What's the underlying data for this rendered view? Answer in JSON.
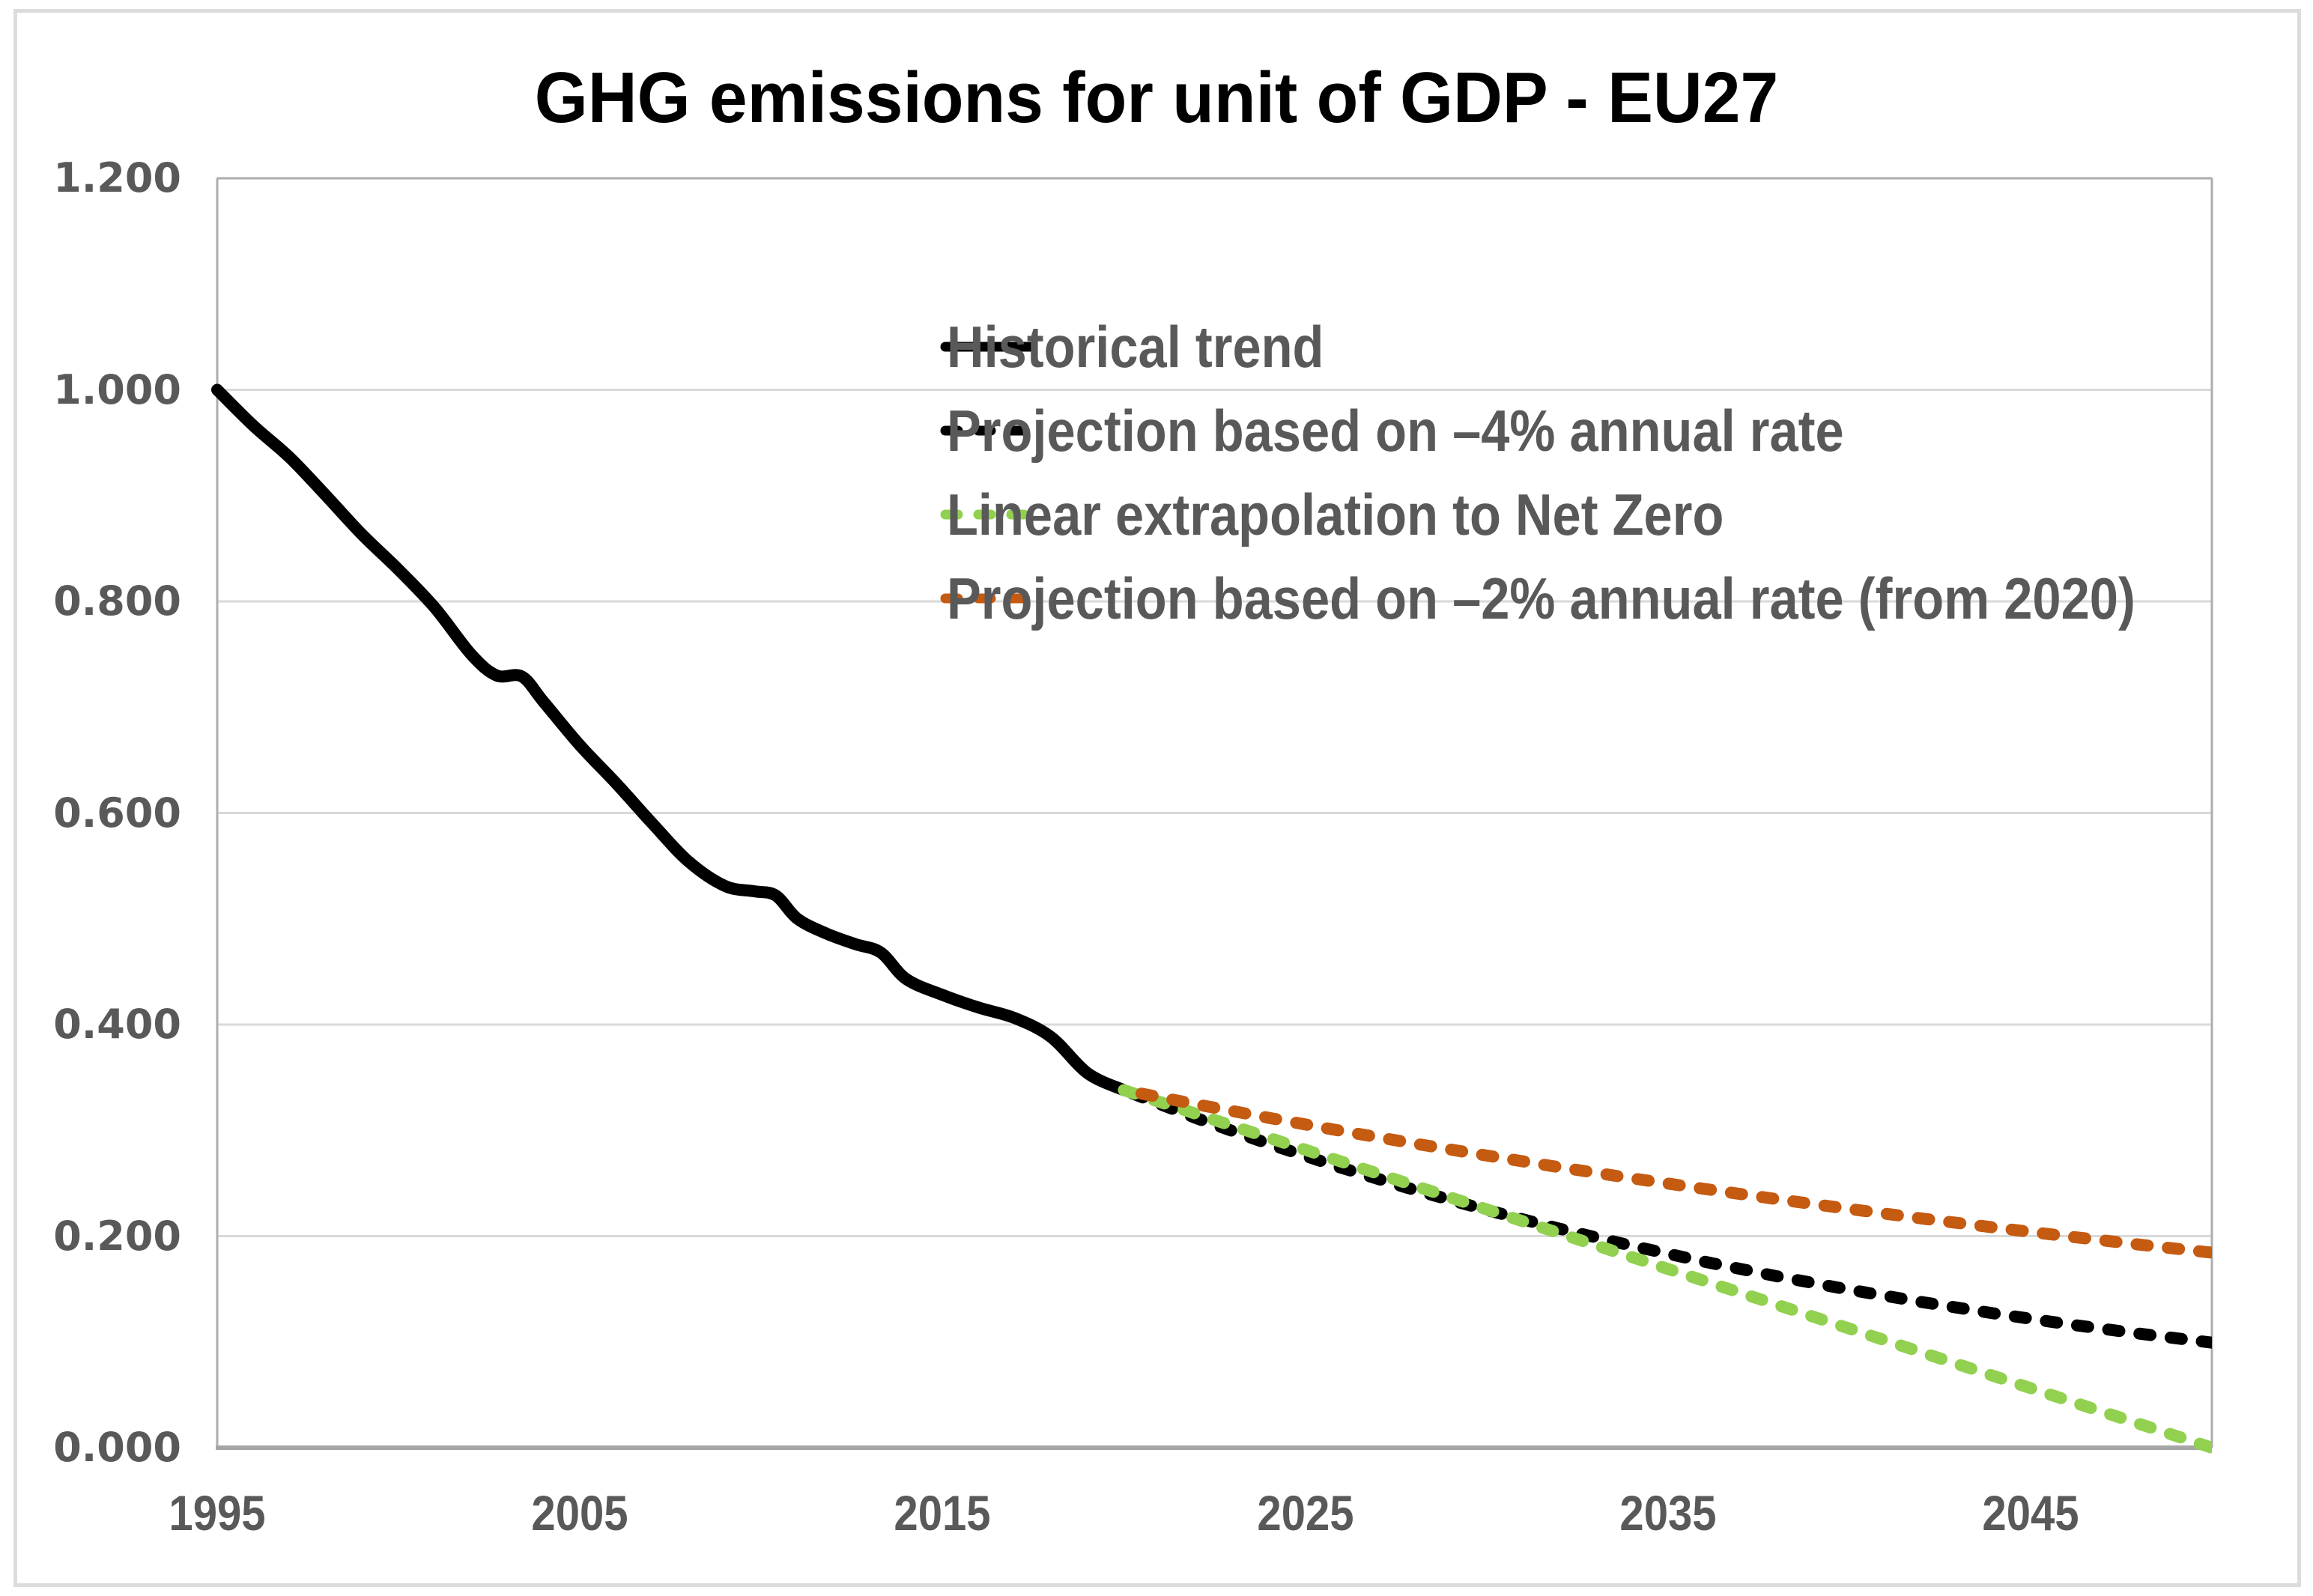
{
  "title": "GHG emissions for unit of GDP - EU27",
  "legend": {
    "position": "inside-top-right",
    "items": [
      {
        "label": "Historical trend",
        "color": "#000000",
        "dashed": false
      },
      {
        "label": "Projection based on –4% annual rate",
        "color": "#000000",
        "dashed": true
      },
      {
        "label": "Linear extrapolation to Net Zero",
        "color": "#92D050",
        "dashed": true
      },
      {
        "label": "Projection based on –2% annual rate (from 2020)",
        "color": "#C55A11",
        "dashed": true
      }
    ]
  },
  "colors": {
    "gridline": "#D9D9D9",
    "plot_border": "#ADADAD",
    "bottom_axis": "#A6A6A6",
    "tick_text": "#595959",
    "title_text": "#000000",
    "historical": "#000000",
    "proj_minus4": "#000000",
    "net_zero": "#92D050",
    "proj_minus2": "#C55A11"
  },
  "chart_data": {
    "type": "line",
    "title": "GHG emissions for unit of GDP - EU27",
    "grid": true,
    "legend_position": "inside top-right",
    "x_axis": {
      "range": [
        1995,
        2050
      ],
      "ticks": [
        {
          "label": "1995",
          "year": 1995
        },
        {
          "label": "2005",
          "year": 2005
        },
        {
          "label": "2015",
          "year": 2015
        },
        {
          "label": "2025",
          "year": 2025
        },
        {
          "label": "2035",
          "year": 2035
        },
        {
          "label": "2045",
          "year": 2045
        }
      ]
    },
    "y_axis": {
      "range": [
        0,
        1.2
      ],
      "ticks": [
        {
          "label": "0.000",
          "value": 0.0
        },
        {
          "label": "0.200",
          "value": 0.2
        },
        {
          "label": "0.400",
          "value": 0.4
        },
        {
          "label": "0.600",
          "value": 0.6
        },
        {
          "label": "0.800",
          "value": 0.8
        },
        {
          "label": "1.000",
          "value": 1.0
        },
        {
          "label": "1.200",
          "value": 1.2
        }
      ]
    },
    "series": [
      {
        "name": "Historical trend",
        "style": "solid",
        "smooth": true,
        "color": "#000000",
        "width": 16,
        "points": [
          [
            1995,
            1.0
          ],
          [
            1996,
            0.966
          ],
          [
            1997,
            0.936
          ],
          [
            1998,
            0.9
          ],
          [
            1999,
            0.863
          ],
          [
            2000,
            0.83
          ],
          [
            2001,
            0.794
          ],
          [
            2002,
            0.75
          ],
          [
            2002.7,
            0.73
          ],
          [
            2003.4,
            0.729
          ],
          [
            2004,
            0.705
          ],
          [
            2005,
            0.664
          ],
          [
            2006,
            0.628
          ],
          [
            2007,
            0.59
          ],
          [
            2008,
            0.554
          ],
          [
            2009,
            0.531
          ],
          [
            2009.8,
            0.526
          ],
          [
            2010.4,
            0.522
          ],
          [
            2011,
            0.5
          ],
          [
            2011.8,
            0.486
          ],
          [
            2012.6,
            0.476
          ],
          [
            2013.3,
            0.468
          ],
          [
            2014,
            0.443
          ],
          [
            2015,
            0.428
          ],
          [
            2016,
            0.416
          ],
          [
            2017,
            0.406
          ],
          [
            2018,
            0.388
          ],
          [
            2019,
            0.354
          ],
          [
            2020,
            0.338
          ]
        ]
      },
      {
        "name": "Projection based on –4% annual rate",
        "style": "dashed",
        "smooth": false,
        "color": "#000000",
        "width": 16,
        "points": [
          [
            2020,
            0.338
          ],
          [
            2022,
            0.3115
          ],
          [
            2024,
            0.2871
          ],
          [
            2026,
            0.2646
          ],
          [
            2028,
            0.2438
          ],
          [
            2030,
            0.2247
          ],
          [
            2032,
            0.2071
          ],
          [
            2034,
            0.1909
          ],
          [
            2036,
            0.1759
          ],
          [
            2038,
            0.1621
          ],
          [
            2040,
            0.1494
          ],
          [
            2042,
            0.1377
          ],
          [
            2044,
            0.1269
          ],
          [
            2046,
            0.1169
          ],
          [
            2048,
            0.1078
          ],
          [
            2050,
            0.0993
          ]
        ]
      },
      {
        "name": "Linear extrapolation to Net Zero",
        "style": "dashed",
        "smooth": false,
        "color": "#92D050",
        "width": 16,
        "points": [
          [
            2020,
            0.338
          ],
          [
            2050,
            0.0
          ]
        ]
      },
      {
        "name": "Projection based on –2% annual rate (from 2020)",
        "style": "dashed",
        "smooth": false,
        "color": "#C55A11",
        "width": 16,
        "points": [
          [
            2020,
            0.338
          ],
          [
            2022,
            0.3246
          ],
          [
            2024,
            0.3118
          ],
          [
            2026,
            0.2994
          ],
          [
            2028,
            0.2876
          ],
          [
            2030,
            0.2762
          ],
          [
            2032,
            0.2652
          ],
          [
            2034,
            0.2547
          ],
          [
            2036,
            0.2447
          ],
          [
            2038,
            0.235
          ],
          [
            2040,
            0.2257
          ],
          [
            2042,
            0.2167
          ],
          [
            2044,
            0.2081
          ],
          [
            2046,
            0.1999
          ],
          [
            2048,
            0.192
          ],
          [
            2050,
            0.1844
          ]
        ]
      }
    ]
  }
}
